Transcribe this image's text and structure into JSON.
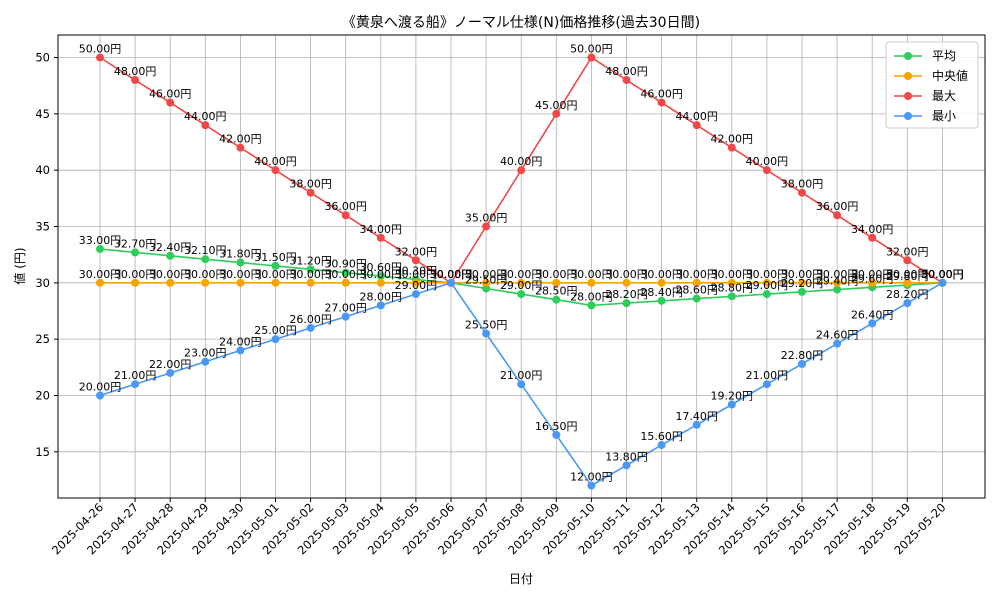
{
  "chart_data": {
    "type": "line",
    "title": "《黄泉へ渡る船》ノーマル仕様(N)価格推移(過去30日間)",
    "xlabel": "日付",
    "ylabel": "値 (円)",
    "ylim": [
      10.9,
      52.0
    ],
    "yticks": [
      15,
      20,
      25,
      30,
      35,
      40,
      45,
      50
    ],
    "grid": true,
    "legend_position": "top-right",
    "label_suffix": "円",
    "categories": [
      "2025-04-26",
      "2025-04-27",
      "2025-04-28",
      "2025-04-29",
      "2025-04-30",
      "2025-05-01",
      "2025-05-02",
      "2025-05-03",
      "2025-05-04",
      "2025-05-05",
      "2025-05-06",
      "2025-05-07",
      "2025-05-08",
      "2025-05-09",
      "2025-05-10",
      "2025-05-11",
      "2025-05-12",
      "2025-05-13",
      "2025-05-14",
      "2025-05-15",
      "2025-05-16",
      "2025-05-17",
      "2025-05-18",
      "2025-05-19",
      "2025-05-20"
    ],
    "series": [
      {
        "name": "平均",
        "color": "#2ecc5a",
        "values": [
          33.0,
          32.7,
          32.4,
          32.1,
          31.8,
          31.5,
          31.2,
          30.9,
          30.6,
          30.3,
          30.0,
          29.5,
          29.0,
          28.5,
          28.0,
          28.2,
          28.4,
          28.6,
          28.8,
          29.0,
          29.2,
          29.4,
          29.6,
          29.8,
          30.0
        ]
      },
      {
        "name": "中央値",
        "color": "#f5a300",
        "values": [
          30.0,
          30.0,
          30.0,
          30.0,
          30.0,
          30.0,
          30.0,
          30.0,
          30.0,
          30.0,
          30.0,
          30.0,
          30.0,
          30.0,
          30.0,
          30.0,
          30.0,
          30.0,
          30.0,
          30.0,
          30.0,
          30.0,
          30.0,
          30.0,
          30.0
        ]
      },
      {
        "name": "最大",
        "color": "#f04848",
        "values": [
          50.0,
          48.0,
          46.0,
          44.0,
          42.0,
          40.0,
          38.0,
          36.0,
          34.0,
          32.0,
          30.0,
          35.0,
          40.0,
          45.0,
          50.0,
          48.0,
          46.0,
          44.0,
          42.0,
          40.0,
          38.0,
          36.0,
          34.0,
          32.0,
          30.0
        ]
      },
      {
        "name": "最小",
        "color": "#4a98f5",
        "values": [
          20.0,
          21.0,
          22.0,
          23.0,
          24.0,
          25.0,
          26.0,
          27.0,
          28.0,
          29.0,
          30.0,
          25.5,
          21.0,
          16.5,
          12.0,
          13.8,
          15.6,
          17.4,
          19.2,
          21.0,
          22.8,
          24.6,
          26.4,
          28.2,
          30.0
        ]
      }
    ]
  }
}
